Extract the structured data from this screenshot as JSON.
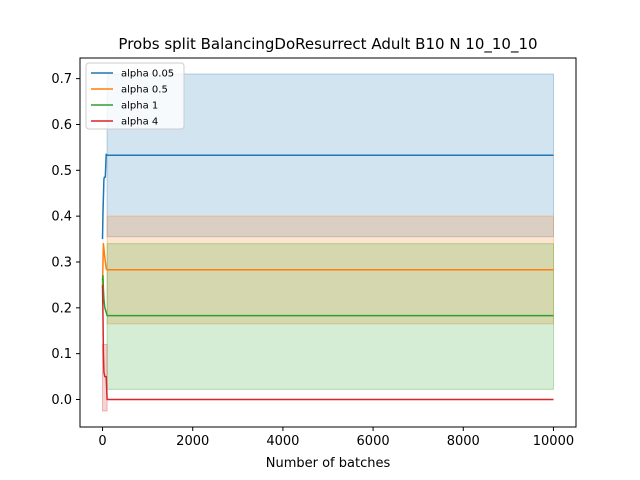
{
  "chart_data": {
    "type": "line",
    "title": "Probs split BalancingDoResurrect Adult B10 N 10_10_10",
    "xlabel": "Number of batches",
    "ylabel": "",
    "xlim": [
      -500,
      10500
    ],
    "ylim": [
      -0.06,
      0.745
    ],
    "xticks": [
      0,
      2000,
      4000,
      6000,
      8000,
      10000
    ],
    "yticks": [
      0.0,
      0.1,
      0.2,
      0.3,
      0.4,
      0.5,
      0.6,
      0.7
    ],
    "xtick_labels": [
      "0",
      "2000",
      "4000",
      "6000",
      "8000",
      "10000"
    ],
    "ytick_labels": [
      "0.0",
      "0.1",
      "0.2",
      "0.3",
      "0.4",
      "0.5",
      "0.6",
      "0.7"
    ],
    "legend_position": "top-left",
    "grid": false,
    "series": [
      {
        "name": "alpha 0.05",
        "color": "#1f77b4",
        "x": [
          0,
          10,
          20,
          30,
          40,
          60,
          80,
          100,
          10000
        ],
        "y": [
          0.35,
          0.41,
          0.44,
          0.48,
          0.485,
          0.485,
          0.535,
          0.533,
          0.533
        ],
        "band": {
          "x": [
            100,
            10000
          ],
          "lower": [
            0.355,
            0.355
          ],
          "upper": [
            0.71,
            0.71
          ]
        }
      },
      {
        "name": "alpha 0.5",
        "color": "#ff7f0e",
        "x": [
          0,
          10,
          20,
          30,
          50,
          80,
          100,
          10000
        ],
        "y": [
          0.25,
          0.3,
          0.34,
          0.33,
          0.31,
          0.285,
          0.283,
          0.283
        ],
        "band": {
          "x": [
            100,
            10000
          ],
          "lower": [
            0.165,
            0.165
          ],
          "upper": [
            0.4,
            0.4
          ]
        }
      },
      {
        "name": "alpha 1",
        "color": "#2ca02c",
        "x": [
          0,
          10,
          20,
          30,
          50,
          80,
          100,
          10000
        ],
        "y": [
          0.26,
          0.27,
          0.24,
          0.22,
          0.2,
          0.19,
          0.183,
          0.183
        ],
        "band": {
          "x": [
            100,
            10000
          ],
          "lower": [
            0.022,
            0.022
          ],
          "upper": [
            0.34,
            0.34
          ]
        }
      },
      {
        "name": "alpha 4",
        "color": "#d62728",
        "x": [
          0,
          10,
          20,
          30,
          50,
          60,
          80,
          100,
          10000
        ],
        "y": [
          0.25,
          0.18,
          0.1,
          0.06,
          0.05,
          0.05,
          0.05,
          0.0,
          0.0
        ],
        "band": {
          "x": [
            0,
            100
          ],
          "lower": [
            -0.025,
            -0.025
          ],
          "upper": [
            0.12,
            0.12
          ]
        }
      }
    ]
  }
}
